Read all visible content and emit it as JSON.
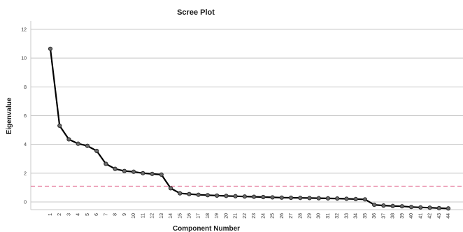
{
  "chart_data": {
    "type": "line",
    "title": "Scree Plot",
    "xlabel": "Component Number",
    "ylabel": "Eigenvalue",
    "ylim": [
      -0.6,
      12.3
    ],
    "yticks": [
      0,
      2,
      4,
      6,
      8,
      10,
      12
    ],
    "grid": "horizontal",
    "x": [
      1,
      2,
      3,
      4,
      5,
      6,
      7,
      8,
      9,
      10,
      11,
      12,
      13,
      14,
      15,
      16,
      17,
      18,
      19,
      20,
      21,
      22,
      23,
      24,
      25,
      26,
      27,
      28,
      29,
      30,
      31,
      32,
      33,
      34,
      35,
      36,
      37,
      38,
      39,
      40,
      41,
      42,
      43,
      44
    ],
    "series": [
      {
        "values": [
          10.65,
          5.3,
          4.35,
          4.05,
          3.9,
          3.55,
          2.65,
          2.3,
          2.15,
          2.1,
          2.0,
          1.95,
          1.9,
          0.95,
          0.6,
          0.55,
          0.5,
          0.47,
          0.44,
          0.42,
          0.4,
          0.38,
          0.36,
          0.34,
          0.32,
          0.3,
          0.29,
          0.28,
          0.27,
          0.26,
          0.25,
          0.24,
          0.22,
          0.2,
          0.18,
          -0.2,
          -0.25,
          -0.28,
          -0.3,
          -0.35,
          -0.38,
          -0.4,
          -0.43,
          -0.45
        ],
        "color": "#000000"
      }
    ],
    "reference_line": {
      "y": 1.1,
      "color": "#e0608a",
      "style": "dashed"
    },
    "gridline_color": "#c8c8c8"
  }
}
